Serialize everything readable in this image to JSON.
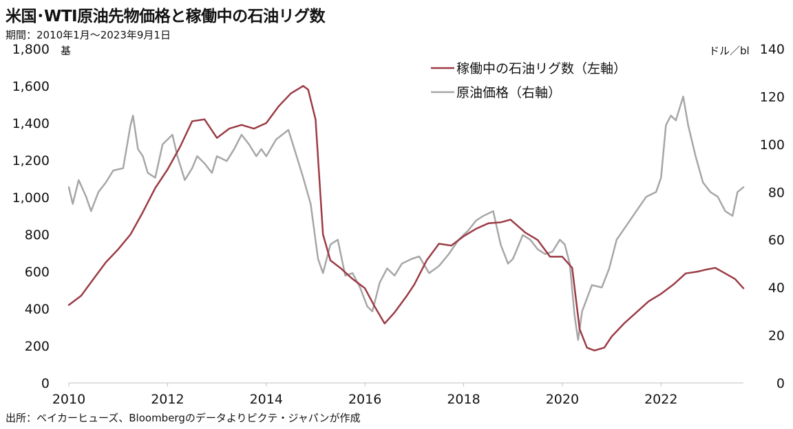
{
  "header": {
    "title": "米国･WTI原油先物価格と稼働中の石油リグ数",
    "subtitle": "期間：2010年1月～2023年9月1日"
  },
  "footer": {
    "source": "出所：ベイカーヒューズ、Bloombergのデータよりピクテ・ジャパンが作成"
  },
  "chart_data": {
    "type": "line",
    "xlim": [
      2010,
      2023.67
    ],
    "x_ticks": [
      "2010",
      "2012",
      "2014",
      "2016",
      "2018",
      "2020",
      "2022"
    ],
    "x_tick_values": [
      2010,
      2012,
      2014,
      2016,
      2018,
      2020,
      2022
    ],
    "y_left": {
      "unit": "基",
      "range": [
        0,
        1800
      ],
      "ticks": [
        "0",
        "200",
        "400",
        "600",
        "800",
        "1,000",
        "1,200",
        "1,400",
        "1,600",
        "1,800"
      ],
      "tick_values": [
        0,
        200,
        400,
        600,
        800,
        1000,
        1200,
        1400,
        1600,
        1800
      ]
    },
    "y_right": {
      "unit": "ドル／bl",
      "range": [
        0,
        140
      ],
      "ticks": [
        "0",
        "20",
        "40",
        "60",
        "80",
        "100",
        "120",
        "140"
      ],
      "tick_values": [
        0,
        20,
        40,
        60,
        80,
        100,
        120,
        140
      ]
    },
    "grid": false,
    "legend_position": "top-right",
    "series": [
      {
        "name": "稼働中の石油リグ数（左軸）",
        "axis": "left",
        "color": "#9b3a44",
        "x": [
          2010.0,
          2010.25,
          2010.5,
          2010.75,
          2011.0,
          2011.25,
          2011.5,
          2011.75,
          2012.0,
          2012.25,
          2012.5,
          2012.75,
          2013.0,
          2013.25,
          2013.5,
          2013.75,
          2014.0,
          2014.25,
          2014.5,
          2014.75,
          2014.85,
          2015.0,
          2015.15,
          2015.3,
          2015.5,
          2015.75,
          2016.0,
          2016.2,
          2016.4,
          2016.6,
          2016.85,
          2017.0,
          2017.25,
          2017.5,
          2017.75,
          2018.0,
          2018.25,
          2018.5,
          2018.75,
          2018.95,
          2019.25,
          2019.5,
          2019.75,
          2020.0,
          2020.2,
          2020.35,
          2020.5,
          2020.65,
          2020.85,
          2021.0,
          2021.25,
          2021.5,
          2021.75,
          2022.0,
          2022.25,
          2022.5,
          2022.75,
          2022.9,
          2023.1,
          2023.3,
          2023.5,
          2023.67
        ],
        "y": [
          420,
          470,
          560,
          650,
          720,
          800,
          920,
          1050,
          1150,
          1270,
          1410,
          1420,
          1320,
          1370,
          1390,
          1370,
          1400,
          1490,
          1560,
          1600,
          1580,
          1420,
          800,
          660,
          620,
          560,
          510,
          410,
          320,
          380,
          470,
          530,
          660,
          750,
          740,
          790,
          830,
          860,
          865,
          880,
          810,
          770,
          680,
          680,
          620,
          290,
          190,
          175,
          190,
          250,
          320,
          380,
          440,
          480,
          530,
          590,
          600,
          610,
          620,
          590,
          560,
          510
        ]
      },
      {
        "name": "原油価格（右軸）",
        "axis": "right",
        "color": "#a6a6a6",
        "x": [
          2010.0,
          2010.08,
          2010.2,
          2010.35,
          2010.45,
          2010.6,
          2010.75,
          2010.9,
          2011.1,
          2011.25,
          2011.3,
          2011.4,
          2011.5,
          2011.6,
          2011.75,
          2011.9,
          2012.0,
          2012.1,
          2012.2,
          2012.35,
          2012.5,
          2012.6,
          2012.75,
          2012.9,
          2013.0,
          2013.2,
          2013.35,
          2013.5,
          2013.65,
          2013.8,
          2013.9,
          2014.0,
          2014.2,
          2014.45,
          2014.6,
          2014.75,
          2014.9,
          2015.05,
          2015.15,
          2015.3,
          2015.45,
          2015.6,
          2015.75,
          2015.9,
          2016.05,
          2016.15,
          2016.3,
          2016.45,
          2016.6,
          2016.75,
          2016.95,
          2017.1,
          2017.3,
          2017.5,
          2017.7,
          2017.9,
          2018.1,
          2018.25,
          2018.4,
          2018.6,
          2018.75,
          2018.9,
          2019.0,
          2019.2,
          2019.35,
          2019.5,
          2019.65,
          2019.8,
          2019.95,
          2020.05,
          2020.15,
          2020.25,
          2020.32,
          2020.4,
          2020.6,
          2020.8,
          2020.95,
          2021.1,
          2021.3,
          2021.5,
          2021.7,
          2021.9,
          2022.0,
          2022.1,
          2022.2,
          2022.3,
          2022.45,
          2022.55,
          2022.7,
          2022.85,
          2023.0,
          2023.15,
          2023.3,
          2023.45,
          2023.55,
          2023.67
        ],
        "y": [
          82,
          75,
          85,
          78,
          72,
          80,
          84,
          89,
          90,
          108,
          112,
          98,
          95,
          88,
          86,
          100,
          102,
          104,
          95,
          85,
          90,
          95,
          92,
          88,
          95,
          93,
          98,
          104,
          100,
          95,
          98,
          95,
          102,
          106,
          96,
          86,
          75,
          52,
          46,
          58,
          60,
          45,
          46,
          40,
          32,
          30,
          42,
          48,
          45,
          50,
          52,
          53,
          46,
          49,
          54,
          60,
          64,
          68,
          70,
          72,
          58,
          50,
          52,
          62,
          60,
          56,
          54,
          55,
          60,
          58,
          50,
          28,
          18,
          30,
          41,
          40,
          48,
          60,
          66,
          72,
          78,
          80,
          86,
          108,
          112,
          110,
          120,
          108,
          95,
          84,
          80,
          78,
          72,
          70,
          80,
          82
        ]
      }
    ]
  }
}
